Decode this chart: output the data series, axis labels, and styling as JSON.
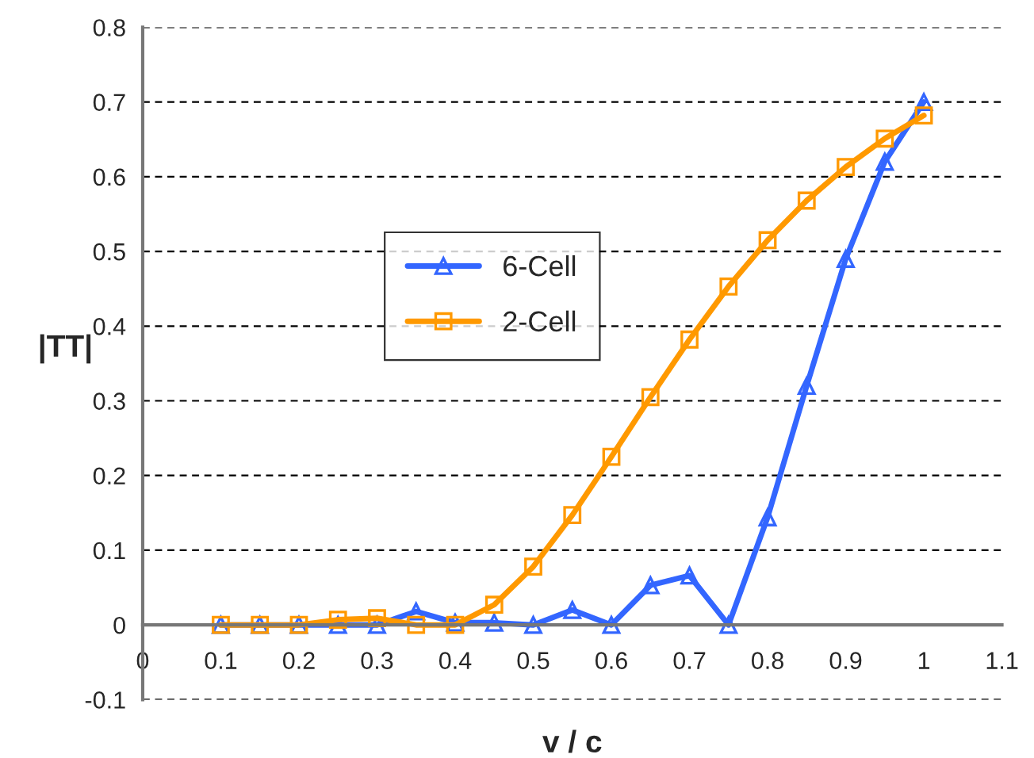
{
  "chart_data": {
    "type": "line",
    "xlabel": "v / c",
    "ylabel": "|TT|",
    "x": [
      0.1,
      0.15,
      0.2,
      0.25,
      0.3,
      0.35,
      0.4,
      0.45,
      0.5,
      0.55,
      0.6,
      0.65,
      0.7,
      0.75,
      0.8,
      0.85,
      0.9,
      0.95,
      1.0
    ],
    "series": [
      {
        "name": "6-Cell",
        "color": "#3366ff",
        "marker": "triangle",
        "values": [
          0,
          0,
          0,
          0,
          0,
          0.018,
          0.003,
          0.003,
          0,
          0.02,
          0,
          0.053,
          0.066,
          0,
          0.144,
          0.32,
          0.49,
          0.62,
          0.7
        ]
      },
      {
        "name": "2-Cell",
        "color": "#ff9900",
        "marker": "square",
        "values": [
          0,
          0,
          0,
          0.007,
          0.009,
          0,
          0,
          0.027,
          0.078,
          0.147,
          0.225,
          0.305,
          0.382,
          0.453,
          0.515,
          0.568,
          0.613,
          0.651,
          0.682
        ]
      }
    ],
    "xlim": [
      0,
      1.1
    ],
    "xticks": [
      0,
      0.1,
      0.2,
      0.3,
      0.4,
      0.5,
      0.6,
      0.7,
      0.8,
      0.9,
      1,
      1.1
    ],
    "ylim": [
      -0.1,
      0.8
    ],
    "yticks": [
      -0.1,
      0,
      0.1,
      0.2,
      0.3,
      0.4,
      0.5,
      0.6,
      0.7,
      0.8
    ],
    "grid": "y",
    "legend": "left",
    "line_style": "solid"
  }
}
